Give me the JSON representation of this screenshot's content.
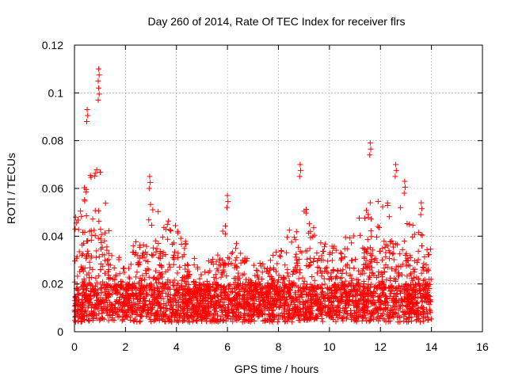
{
  "chart_data": {
    "type": "scatter",
    "title": "Day 260 of 2014, Rate Of TEC Index for receiver flrs",
    "xlabel": "GPS time / hours",
    "ylabel": "ROTI / TECUs",
    "xlim": [
      0,
      16
    ],
    "ylim": [
      0,
      0.12
    ],
    "xticks": [
      "0",
      "2",
      "4",
      "6",
      "8",
      "10",
      "12",
      "14",
      "16"
    ],
    "yticks": [
      "0",
      "0.02",
      "0.04",
      "0.06",
      "0.08",
      "0.1",
      "0.12"
    ],
    "grid": true,
    "marker": "+",
    "color": "#ff0000",
    "series": [
      {
        "name": "ROTI",
        "time_range": [
          0,
          14
        ],
        "point_count": 3200,
        "peaks": [
          {
            "x": 0.95,
            "y": 0.11
          },
          {
            "x": 0.5,
            "y": 0.093
          },
          {
            "x": 0.95,
            "y": 0.102
          },
          {
            "x": 11.6,
            "y": 0.079
          },
          {
            "x": 12.6,
            "y": 0.07
          },
          {
            "x": 8.85,
            "y": 0.07
          },
          {
            "x": 2.95,
            "y": 0.065
          },
          {
            "x": 6.0,
            "y": 0.057
          },
          {
            "x": 0.05,
            "y": 0.048
          },
          {
            "x": 13.6,
            "y": 0.054
          },
          {
            "x": 12.95,
            "y": 0.063
          }
        ],
        "envelope": {
          "x": [
            0,
            0.5,
            1.0,
            1.5,
            2.0,
            2.5,
            3.0,
            3.5,
            4.0,
            4.5,
            5.0,
            5.5,
            6.0,
            6.5,
            7.0,
            7.5,
            8.0,
            8.5,
            9.0,
            9.5,
            10.0,
            10.5,
            11.0,
            11.5,
            12.0,
            12.5,
            13.0,
            13.5,
            14.0
          ],
          "y": [
            0.045,
            0.065,
            0.07,
            0.04,
            0.025,
            0.045,
            0.055,
            0.05,
            0.045,
            0.035,
            0.025,
            0.035,
            0.05,
            0.035,
            0.03,
            0.03,
            0.035,
            0.045,
            0.055,
            0.04,
            0.035,
            0.04,
            0.045,
            0.055,
            0.055,
            0.06,
            0.05,
            0.045,
            0.035
          ]
        }
      }
    ]
  }
}
